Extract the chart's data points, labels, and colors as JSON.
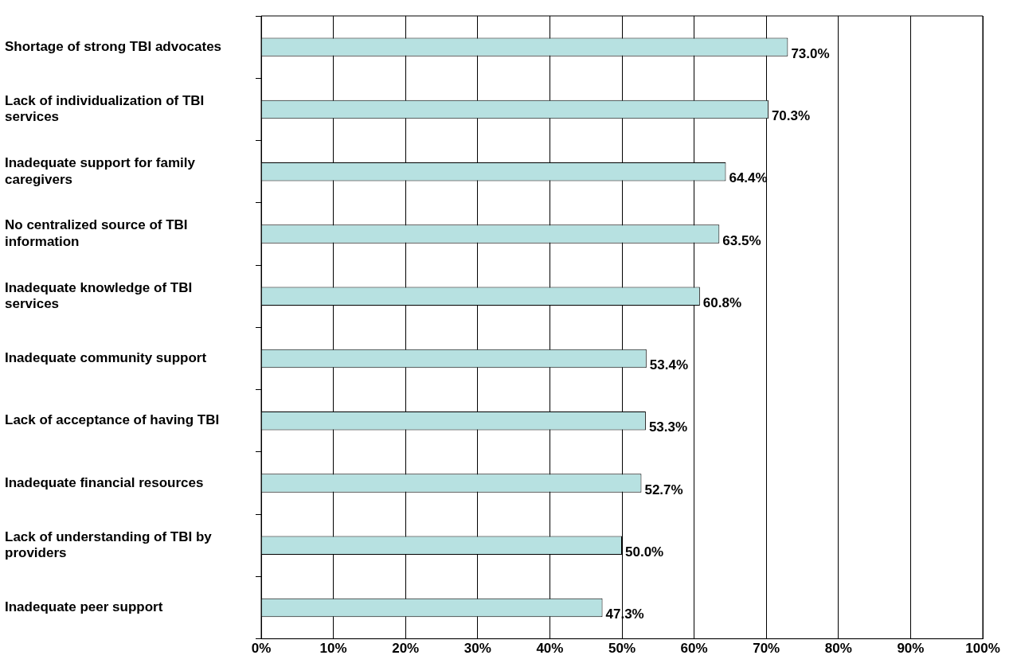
{
  "chart_data": {
    "type": "bar",
    "orientation": "horizontal",
    "categories": [
      "Shortage of strong TBI advocates",
      "Lack of individualization of TBI services",
      "Inadequate support for family caregivers",
      "No centralized source of TBI information",
      "Inadequate knowledge of TBI services",
      "Inadequate community support",
      "Lack of acceptance of having TBI",
      "Inadequate financial resources",
      "Lack of understanding of TBI by providers",
      "Inadequate peer support"
    ],
    "values": [
      73.0,
      70.3,
      64.4,
      63.5,
      60.8,
      53.4,
      53.3,
      52.7,
      50.0,
      47.3
    ],
    "value_labels": [
      "73.0%",
      "70.3%",
      "64.4%",
      "63.5%",
      "60.8%",
      "53.4%",
      "53.3%",
      "52.7%",
      "50.0%",
      "47.3%"
    ],
    "color": "#b7e1e1",
    "xlim": [
      0,
      100
    ],
    "xticks": [
      {
        "value": 0,
        "label": "0%"
      },
      {
        "value": 10,
        "label": "10%"
      },
      {
        "value": 20,
        "label": "20%"
      },
      {
        "value": 30,
        "label": "30%"
      },
      {
        "value": 40,
        "label": "40%"
      },
      {
        "value": 50,
        "label": "50%"
      },
      {
        "value": 60,
        "label": "60%"
      },
      {
        "value": 70,
        "label": "70%"
      },
      {
        "value": 80,
        "label": "80%"
      },
      {
        "value": 90,
        "label": "90%"
      },
      {
        "value": 100,
        "label": "100%"
      }
    ],
    "grid": "x",
    "legend": false
  }
}
